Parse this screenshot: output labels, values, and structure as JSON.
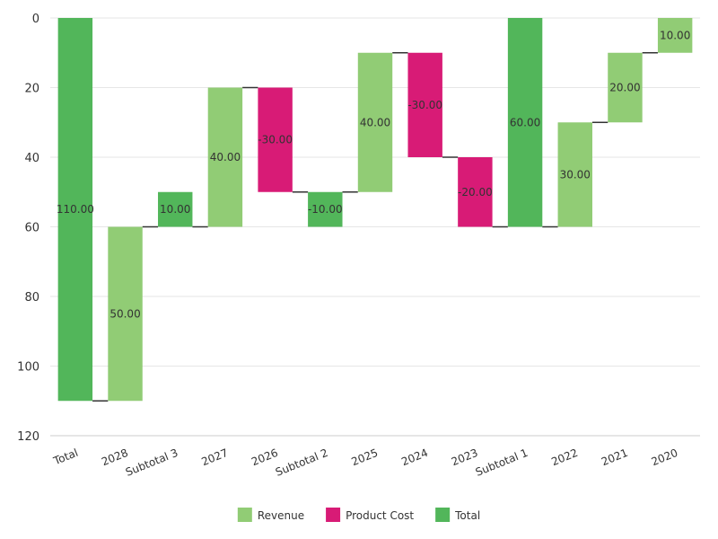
{
  "chart_data": {
    "type": "waterfall",
    "y_axis": {
      "ticks": [
        0,
        20,
        40,
        60,
        80,
        100,
        120
      ],
      "range": [
        0,
        120
      ],
      "reversed": true
    },
    "grid": true,
    "legend_position": "bottom-center",
    "legend": [
      {
        "key": "revenue",
        "label": "Revenue",
        "color": "#91cc75"
      },
      {
        "key": "cost",
        "label": "Product Cost",
        "color": "#d81b76"
      },
      {
        "key": "total",
        "label": "Total",
        "color": "#52b65a"
      }
    ],
    "bars": [
      {
        "category": "Total",
        "start": 0,
        "end": 110,
        "label": "110.00",
        "kind": "total"
      },
      {
        "category": "2028",
        "start": 60,
        "end": 110,
        "label": "50.00",
        "kind": "revenue"
      },
      {
        "category": "Subtotal 3",
        "start": 50,
        "end": 60,
        "label": "10.00",
        "kind": "total"
      },
      {
        "category": "2027",
        "start": 20,
        "end": 60,
        "label": "40.00",
        "kind": "revenue"
      },
      {
        "category": "2026",
        "start": 20,
        "end": 50,
        "label": "-30.00",
        "kind": "cost"
      },
      {
        "category": "Subtotal 2",
        "start": 50,
        "end": 60,
        "label": "-10.00",
        "kind": "total"
      },
      {
        "category": "2025",
        "start": 10,
        "end": 50,
        "label": "40.00",
        "kind": "revenue"
      },
      {
        "category": "2024",
        "start": 10,
        "end": 40,
        "label": "-30.00",
        "kind": "cost"
      },
      {
        "category": "2023",
        "start": 40,
        "end": 60,
        "label": "-20.00",
        "kind": "cost"
      },
      {
        "category": "Subtotal 1",
        "start": 0,
        "end": 60,
        "label": "60.00",
        "kind": "total"
      },
      {
        "category": "2022",
        "start": 30,
        "end": 60,
        "label": "30.00",
        "kind": "revenue"
      },
      {
        "category": "2021",
        "start": 10,
        "end": 30,
        "label": "20.00",
        "kind": "revenue"
      },
      {
        "category": "2020",
        "start": 0,
        "end": 10,
        "label": "10.00",
        "kind": "revenue"
      }
    ],
    "connectors": [
      110,
      60,
      60,
      20,
      50,
      50,
      10,
      40,
      60,
      60,
      30,
      10
    ]
  }
}
